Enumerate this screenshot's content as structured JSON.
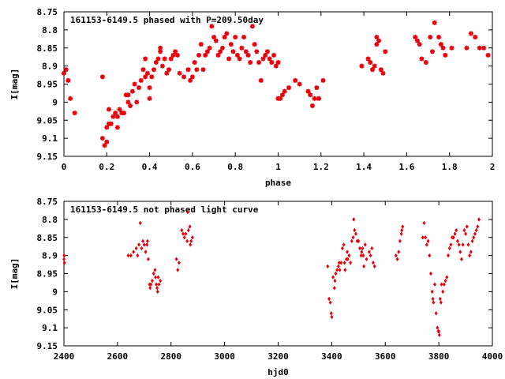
{
  "colors": {
    "points": "#e8000b",
    "axes": "#000000",
    "background": "#ffffff"
  },
  "chart_data": [
    {
      "type": "scatter",
      "title": "161153-6149.5 phased with P=209.50day",
      "xlabel": "phase",
      "ylabel": "I[mag]",
      "xlim": [
        0,
        2
      ],
      "ylim": [
        9.15,
        8.75
      ],
      "y_inverted": true,
      "grid": false,
      "marker": "star",
      "xticks": [
        "0",
        "0.2",
        "0.4",
        "0.6",
        "0.8",
        "1",
        "1.2",
        "1.4",
        "1.6",
        "1.8",
        "2"
      ],
      "yticks": [
        "8.75",
        "8.8",
        "8.85",
        "8.9",
        "8.95",
        "9",
        "9.05",
        "9.1",
        "9.15"
      ],
      "points": [
        [
          0.0,
          8.92
        ],
        [
          0.01,
          8.91
        ],
        [
          0.02,
          8.94
        ],
        [
          0.03,
          8.99
        ],
        [
          0.05,
          9.03
        ],
        [
          0.18,
          8.93
        ],
        [
          0.18,
          9.1
        ],
        [
          0.19,
          9.12
        ],
        [
          0.2,
          9.11
        ],
        [
          0.2,
          9.07
        ],
        [
          0.21,
          9.02
        ],
        [
          0.21,
          9.06
        ],
        [
          0.22,
          9.06
        ],
        [
          0.23,
          9.04
        ],
        [
          0.24,
          9.03
        ],
        [
          0.25,
          9.04
        ],
        [
          0.25,
          9.07
        ],
        [
          0.26,
          9.02
        ],
        [
          0.27,
          9.03
        ],
        [
          0.28,
          9.03
        ],
        [
          0.29,
          8.98
        ],
        [
          0.3,
          8.98
        ],
        [
          0.3,
          9.0
        ],
        [
          0.31,
          9.01
        ],
        [
          0.32,
          8.97
        ],
        [
          0.33,
          8.95
        ],
        [
          0.34,
          9.0
        ],
        [
          0.35,
          8.96
        ],
        [
          0.36,
          8.94
        ],
        [
          0.37,
          8.91
        ],
        [
          0.38,
          8.88
        ],
        [
          0.38,
          8.93
        ],
        [
          0.39,
          8.92
        ],
        [
          0.4,
          8.99
        ],
        [
          0.4,
          8.96
        ],
        [
          0.41,
          8.93
        ],
        [
          0.42,
          8.91
        ],
        [
          0.43,
          8.89
        ],
        [
          0.44,
          8.88
        ],
        [
          0.45,
          8.86
        ],
        [
          0.45,
          8.85
        ],
        [
          0.46,
          8.9
        ],
        [
          0.47,
          8.88
        ],
        [
          0.48,
          8.92
        ],
        [
          0.49,
          8.91
        ],
        [
          0.5,
          8.88
        ],
        [
          0.51,
          8.87
        ],
        [
          0.52,
          8.86
        ],
        [
          0.53,
          8.87
        ],
        [
          0.54,
          8.92
        ],
        [
          0.56,
          8.93
        ],
        [
          0.58,
          8.91
        ],
        [
          0.59,
          8.94
        ],
        [
          0.6,
          8.93
        ],
        [
          0.61,
          8.89
        ],
        [
          0.62,
          8.91
        ],
        [
          0.63,
          8.87
        ],
        [
          0.64,
          8.84
        ],
        [
          0.65,
          8.91
        ],
        [
          0.66,
          8.87
        ],
        [
          0.67,
          8.86
        ],
        [
          0.68,
          8.85
        ],
        [
          0.69,
          8.79
        ],
        [
          0.7,
          8.82
        ],
        [
          0.71,
          8.83
        ],
        [
          0.72,
          8.87
        ],
        [
          0.73,
          8.86
        ],
        [
          0.74,
          8.85
        ],
        [
          0.75,
          8.82
        ],
        [
          0.76,
          8.81
        ],
        [
          0.77,
          8.88
        ],
        [
          0.78,
          8.84
        ],
        [
          0.79,
          8.86
        ],
        [
          0.8,
          8.82
        ],
        [
          0.81,
          8.87
        ],
        [
          0.82,
          8.88
        ],
        [
          0.83,
          8.85
        ],
        [
          0.84,
          8.82
        ],
        [
          0.85,
          8.86
        ],
        [
          0.86,
          8.87
        ],
        [
          0.87,
          8.89
        ],
        [
          0.88,
          8.79
        ],
        [
          0.89,
          8.84
        ],
        [
          0.9,
          8.86
        ],
        [
          0.91,
          8.89
        ],
        [
          0.92,
          8.94
        ],
        [
          0.93,
          8.88
        ],
        [
          0.94,
          8.87
        ],
        [
          0.95,
          8.86
        ],
        [
          0.96,
          8.88
        ],
        [
          0.97,
          8.89
        ],
        [
          0.98,
          8.87
        ],
        [
          0.99,
          8.9
        ],
        [
          1.0,
          8.89
        ],
        [
          1.0,
          8.99
        ],
        [
          1.01,
          8.99
        ],
        [
          1.02,
          8.98
        ],
        [
          1.03,
          8.97
        ],
        [
          1.05,
          8.96
        ],
        [
          1.08,
          8.94
        ],
        [
          1.1,
          8.95
        ],
        [
          1.14,
          8.97
        ],
        [
          1.15,
          8.98
        ],
        [
          1.16,
          9.01
        ],
        [
          1.17,
          8.99
        ],
        [
          1.18,
          8.96
        ],
        [
          1.19,
          8.99
        ],
        [
          1.21,
          8.94
        ],
        [
          1.39,
          8.9
        ],
        [
          1.42,
          8.88
        ],
        [
          1.43,
          8.89
        ],
        [
          1.44,
          8.91
        ],
        [
          1.45,
          8.9
        ],
        [
          1.46,
          8.84
        ],
        [
          1.46,
          8.82
        ],
        [
          1.47,
          8.83
        ],
        [
          1.48,
          8.91
        ],
        [
          1.49,
          8.92
        ],
        [
          1.5,
          8.86
        ],
        [
          1.64,
          8.82
        ],
        [
          1.65,
          8.83
        ],
        [
          1.66,
          8.84
        ],
        [
          1.67,
          8.88
        ],
        [
          1.69,
          8.89
        ],
        [
          1.71,
          8.82
        ],
        [
          1.72,
          8.86
        ],
        [
          1.73,
          8.78
        ],
        [
          1.75,
          8.82
        ],
        [
          1.76,
          8.84
        ],
        [
          1.77,
          8.85
        ],
        [
          1.78,
          8.87
        ],
        [
          1.81,
          8.85
        ],
        [
          1.88,
          8.85
        ],
        [
          1.9,
          8.81
        ],
        [
          1.92,
          8.82
        ],
        [
          1.94,
          8.85
        ],
        [
          1.96,
          8.85
        ],
        [
          1.98,
          8.87
        ]
      ]
    },
    {
      "type": "scatter",
      "title": "161153-6149.5 not phased light curve",
      "xlabel": "hjd0",
      "ylabel": "I[mag]",
      "xlim": [
        2400,
        4000
      ],
      "ylim": [
        9.15,
        8.75
      ],
      "y_inverted": true,
      "grid": false,
      "marker": "dot",
      "xticks": [
        "2400",
        "2600",
        "2800",
        "3000",
        "3200",
        "3400",
        "3600",
        "3800",
        "4000"
      ],
      "yticks": [
        "8.75",
        "8.8",
        "8.85",
        "8.9",
        "8.95",
        "9",
        "9.05",
        "9.1",
        "9.15"
      ],
      "points": [
        [
          2400,
          8.91
        ],
        [
          2401,
          8.9
        ],
        [
          2402,
          8.92
        ],
        [
          2640,
          8.9
        ],
        [
          2650,
          8.9
        ],
        [
          2660,
          8.89
        ],
        [
          2670,
          8.88
        ],
        [
          2675,
          8.9
        ],
        [
          2680,
          8.87
        ],
        [
          2685,
          8.81
        ],
        [
          2690,
          8.88
        ],
        [
          2695,
          8.86
        ],
        [
          2700,
          8.87
        ],
        [
          2705,
          8.89
        ],
        [
          2710,
          8.87
        ],
        [
          2712,
          8.86
        ],
        [
          2715,
          8.91
        ],
        [
          2720,
          8.98
        ],
        [
          2722,
          8.99
        ],
        [
          2725,
          8.98
        ],
        [
          2730,
          8.97
        ],
        [
          2735,
          8.95
        ],
        [
          2740,
          8.94
        ],
        [
          2742,
          8.96
        ],
        [
          2745,
          8.98
        ],
        [
          2748,
          8.99
        ],
        [
          2750,
          9.0
        ],
        [
          2752,
          8.96
        ],
        [
          2755,
          8.98
        ],
        [
          2760,
          8.97
        ],
        [
          2820,
          8.91
        ],
        [
          2825,
          8.94
        ],
        [
          2830,
          8.92
        ],
        [
          2840,
          8.83
        ],
        [
          2845,
          8.84
        ],
        [
          2850,
          8.85
        ],
        [
          2855,
          8.84
        ],
        [
          2860,
          8.86
        ],
        [
          2862,
          8.78
        ],
        [
          2865,
          8.83
        ],
        [
          2870,
          8.82
        ],
        [
          2872,
          8.87
        ],
        [
          2875,
          8.86
        ],
        [
          2880,
          8.85
        ],
        [
          3385,
          8.93
        ],
        [
          3390,
          9.02
        ],
        [
          3395,
          9.03
        ],
        [
          3398,
          9.06
        ],
        [
          3400,
          9.07
        ],
        [
          3405,
          8.96
        ],
        [
          3410,
          8.99
        ],
        [
          3412,
          8.97
        ],
        [
          3415,
          8.95
        ],
        [
          3420,
          8.94
        ],
        [
          3425,
          8.93
        ],
        [
          3428,
          8.92
        ],
        [
          3430,
          8.94
        ],
        [
          3435,
          8.92
        ],
        [
          3440,
          8.88
        ],
        [
          3445,
          8.87
        ],
        [
          3448,
          8.92
        ],
        [
          3450,
          8.94
        ],
        [
          3455,
          8.91
        ],
        [
          3458,
          8.89
        ],
        [
          3460,
          8.91
        ],
        [
          3465,
          8.9
        ],
        [
          3470,
          8.92
        ],
        [
          3475,
          8.86
        ],
        [
          3480,
          8.85
        ],
        [
          3482,
          8.8
        ],
        [
          3485,
          8.83
        ],
        [
          3490,
          8.84
        ],
        [
          3495,
          8.86
        ],
        [
          3500,
          8.86
        ],
        [
          3505,
          8.88
        ],
        [
          3510,
          8.9
        ],
        [
          3512,
          8.89
        ],
        [
          3515,
          8.88
        ],
        [
          3518,
          8.9
        ],
        [
          3520,
          8.93
        ],
        [
          3525,
          8.87
        ],
        [
          3530,
          8.91
        ],
        [
          3540,
          8.89
        ],
        [
          3545,
          8.9
        ],
        [
          3550,
          8.88
        ],
        [
          3555,
          8.92
        ],
        [
          3560,
          8.93
        ],
        [
          3640,
          8.9
        ],
        [
          3645,
          8.91
        ],
        [
          3650,
          8.89
        ],
        [
          3655,
          8.86
        ],
        [
          3660,
          8.84
        ],
        [
          3662,
          8.83
        ],
        [
          3665,
          8.82
        ],
        [
          3740,
          8.85
        ],
        [
          3745,
          8.81
        ],
        [
          3750,
          8.85
        ],
        [
          3755,
          8.87
        ],
        [
          3760,
          8.86
        ],
        [
          3765,
          8.9
        ],
        [
          3770,
          8.95
        ],
        [
          3775,
          9.0
        ],
        [
          3778,
          9.02
        ],
        [
          3780,
          9.03
        ],
        [
          3785,
          8.98
        ],
        [
          3790,
          9.06
        ],
        [
          3795,
          9.1
        ],
        [
          3798,
          9.11
        ],
        [
          3800,
          9.11
        ],
        [
          3802,
          9.12
        ],
        [
          3805,
          9.02
        ],
        [
          3808,
          9.03
        ],
        [
          3810,
          8.98
        ],
        [
          3815,
          9.0
        ],
        [
          3820,
          8.98
        ],
        [
          3825,
          8.97
        ],
        [
          3830,
          8.96
        ],
        [
          3835,
          8.9
        ],
        [
          3840,
          8.88
        ],
        [
          3845,
          8.87
        ],
        [
          3850,
          8.85
        ],
        [
          3855,
          8.85
        ],
        [
          3860,
          8.84
        ],
        [
          3865,
          8.83
        ],
        [
          3870,
          8.86
        ],
        [
          3875,
          8.87
        ],
        [
          3880,
          8.89
        ],
        [
          3885,
          8.91
        ],
        [
          3890,
          8.87
        ],
        [
          3895,
          8.83
        ],
        [
          3900,
          8.84
        ],
        [
          3905,
          8.82
        ],
        [
          3910,
          8.87
        ],
        [
          3915,
          8.9
        ],
        [
          3920,
          8.89
        ],
        [
          3925,
          8.86
        ],
        [
          3930,
          8.85
        ],
        [
          3935,
          8.84
        ],
        [
          3940,
          8.83
        ],
        [
          3945,
          8.82
        ],
        [
          3950,
          8.8
        ]
      ]
    }
  ]
}
